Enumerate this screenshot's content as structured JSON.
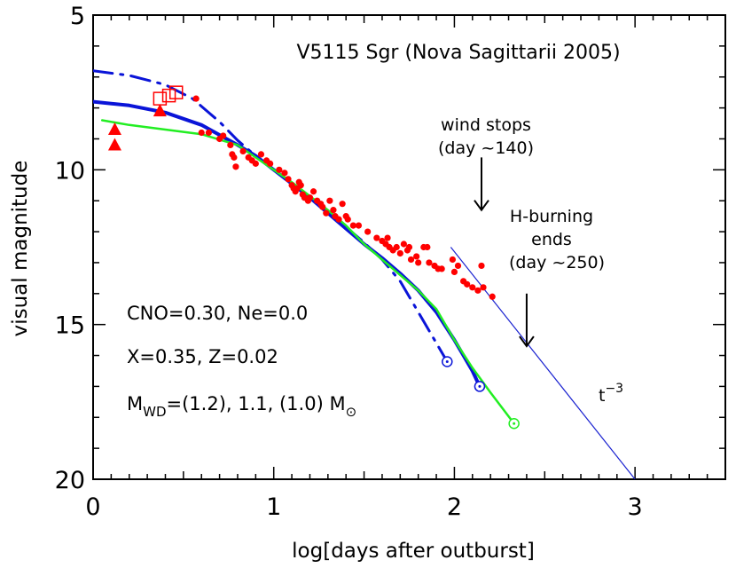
{
  "chart_data": {
    "type": "scatter",
    "title": "V5115 Sgr (Nova Sagittarii 2005)",
    "xlabel": "log[days after outburst]",
    "ylabel": "visual magnitude",
    "xlim": [
      0,
      3.5
    ],
    "ylim": [
      5,
      20
    ],
    "y_inverted": true,
    "grid": false,
    "x_ticks": [
      "0",
      "1",
      "2",
      "3"
    ],
    "y_ticks": [
      "5",
      "10",
      "15",
      "20"
    ],
    "colors": {
      "observed": "#ff0000",
      "model_main": "#0a14d8",
      "model_green": "#22ee22",
      "powerlaw": "#1a22d0",
      "axes": "#000000"
    },
    "series": [
      {
        "kind": "observed_points",
        "marker": "filled-circle",
        "color": "#ff0000",
        "points": [
          [
            0.57,
            7.7
          ],
          [
            0.6,
            8.8
          ],
          [
            0.64,
            8.8
          ],
          [
            0.7,
            9.0
          ],
          [
            0.72,
            8.9
          ],
          [
            0.76,
            9.2
          ],
          [
            0.77,
            9.5
          ],
          [
            0.78,
            9.6
          ],
          [
            0.79,
            9.9
          ],
          [
            0.83,
            9.4
          ],
          [
            0.86,
            9.6
          ],
          [
            0.88,
            9.7
          ],
          [
            0.9,
            9.8
          ],
          [
            0.93,
            9.5
          ],
          [
            0.96,
            9.7
          ],
          [
            0.98,
            9.8
          ],
          [
            1.03,
            10.0
          ],
          [
            1.06,
            10.1
          ],
          [
            1.08,
            10.3
          ],
          [
            1.1,
            10.5
          ],
          [
            1.11,
            10.6
          ],
          [
            1.12,
            10.7
          ],
          [
            1.13,
            10.6
          ],
          [
            1.14,
            10.4
          ],
          [
            1.15,
            10.5
          ],
          [
            1.16,
            10.8
          ],
          [
            1.17,
            10.9
          ],
          [
            1.19,
            11.0
          ],
          [
            1.2,
            10.9
          ],
          [
            1.22,
            10.7
          ],
          [
            1.24,
            11.0
          ],
          [
            1.26,
            11.1
          ],
          [
            1.27,
            11.2
          ],
          [
            1.29,
            11.4
          ],
          [
            1.31,
            11.0
          ],
          [
            1.33,
            11.3
          ],
          [
            1.34,
            11.5
          ],
          [
            1.36,
            11.6
          ],
          [
            1.38,
            11.1
          ],
          [
            1.4,
            11.5
          ],
          [
            1.41,
            11.6
          ],
          [
            1.44,
            11.8
          ],
          [
            1.47,
            11.8
          ],
          [
            1.52,
            12.0
          ],
          [
            1.57,
            12.2
          ],
          [
            1.6,
            12.3
          ],
          [
            1.62,
            12.4
          ],
          [
            1.63,
            12.2
          ],
          [
            1.64,
            12.5
          ],
          [
            1.66,
            12.6
          ],
          [
            1.68,
            12.5
          ],
          [
            1.7,
            12.7
          ],
          [
            1.72,
            12.4
          ],
          [
            1.74,
            12.6
          ],
          [
            1.75,
            12.5
          ],
          [
            1.76,
            12.9
          ],
          [
            1.79,
            12.8
          ],
          [
            1.8,
            13.0
          ],
          [
            1.83,
            12.5
          ],
          [
            1.85,
            12.5
          ],
          [
            1.86,
            13.0
          ],
          [
            1.89,
            13.1
          ],
          [
            1.91,
            13.2
          ],
          [
            1.93,
            13.2
          ],
          [
            1.99,
            12.9
          ],
          [
            2.0,
            13.3
          ],
          [
            2.02,
            13.1
          ],
          [
            2.05,
            13.6
          ],
          [
            2.07,
            13.7
          ],
          [
            2.1,
            13.8
          ],
          [
            2.13,
            13.9
          ],
          [
            2.15,
            13.1
          ],
          [
            2.16,
            13.8
          ],
          [
            2.21,
            14.1
          ]
        ]
      },
      {
        "kind": "observed_points",
        "marker": "filled-triangle",
        "color": "#ff0000",
        "points": [
          [
            0.12,
            8.7
          ],
          [
            0.12,
            9.2
          ],
          [
            0.37,
            8.1
          ]
        ]
      },
      {
        "kind": "observed_points",
        "marker": "open-square",
        "color": "#ff0000",
        "points": [
          [
            0.37,
            7.7
          ],
          [
            0.42,
            7.6
          ],
          [
            0.46,
            7.5
          ]
        ]
      },
      {
        "kind": "model_curve",
        "style": "solid-thick",
        "color": "#0a14d8",
        "points": [
          [
            0,
            7.8
          ],
          [
            0.2,
            7.92
          ],
          [
            0.4,
            8.15
          ],
          [
            0.6,
            8.55
          ],
          [
            0.8,
            9.2
          ],
          [
            0.9,
            9.55
          ],
          [
            1.0,
            10.0
          ],
          [
            1.1,
            10.45
          ],
          [
            1.2,
            10.9
          ],
          [
            1.3,
            11.4
          ],
          [
            1.4,
            11.9
          ],
          [
            1.5,
            12.4
          ],
          [
            1.6,
            12.85
          ],
          [
            1.7,
            13.35
          ],
          [
            1.8,
            13.9
          ],
          [
            1.9,
            14.6
          ],
          [
            2.0,
            15.5
          ],
          [
            2.05,
            16.0
          ],
          [
            2.1,
            16.5
          ],
          [
            2.14,
            17.0
          ]
        ]
      },
      {
        "kind": "model_curve",
        "style": "dash-dot",
        "color": "#0a14d8",
        "points": [
          [
            0,
            6.8
          ],
          [
            0.2,
            6.95
          ],
          [
            0.4,
            7.25
          ],
          [
            0.55,
            7.7
          ],
          [
            0.7,
            8.45
          ],
          [
            0.8,
            9.05
          ],
          [
            0.9,
            9.55
          ],
          [
            1.0,
            10.0
          ],
          [
            1.1,
            10.45
          ],
          [
            1.2,
            10.9
          ],
          [
            1.3,
            11.35
          ],
          [
            1.4,
            11.85
          ],
          [
            1.5,
            12.35
          ],
          [
            1.6,
            12.9
          ],
          [
            1.7,
            13.6
          ],
          [
            1.8,
            14.6
          ],
          [
            1.88,
            15.4
          ],
          [
            1.96,
            16.2
          ]
        ]
      },
      {
        "kind": "model_curve",
        "style": "solid",
        "color": "#22ee22",
        "points": [
          [
            0.05,
            8.4
          ],
          [
            0.2,
            8.55
          ],
          [
            0.4,
            8.7
          ],
          [
            0.6,
            8.85
          ],
          [
            0.8,
            9.2
          ],
          [
            0.9,
            9.6
          ],
          [
            1.0,
            10.0
          ],
          [
            1.1,
            10.4
          ],
          [
            1.2,
            10.85
          ],
          [
            1.3,
            11.3
          ],
          [
            1.4,
            11.8
          ],
          [
            1.5,
            12.4
          ],
          [
            1.6,
            12.9
          ],
          [
            1.7,
            13.4
          ],
          [
            1.8,
            13.9
          ],
          [
            1.9,
            14.5
          ],
          [
            2.0,
            15.5
          ],
          [
            2.1,
            16.4
          ],
          [
            2.2,
            17.2
          ],
          [
            2.33,
            18.2
          ]
        ]
      },
      {
        "kind": "powerlaw_line",
        "label": "t^-3",
        "color": "#1a22d0",
        "points": [
          [
            1.98,
            12.5
          ],
          [
            3.0,
            20.0
          ]
        ]
      }
    ],
    "end_markers": [
      {
        "x": 1.96,
        "y": 16.2,
        "color": "#0a14d8"
      },
      {
        "x": 2.14,
        "y": 17.0,
        "color": "#0a14d8"
      },
      {
        "x": 2.33,
        "y": 18.2,
        "color": "#22ee22"
      }
    ],
    "annotations": {
      "wind": {
        "line1": "wind stops",
        "line2": "(day ~140)",
        "x": 2.15,
        "y_start": 9.6,
        "y_end": 11.3
      },
      "hburn": {
        "line1": "H-burning",
        "line2": "ends",
        "line3": "(day ~250)",
        "x": 2.4,
        "y_start": 14.0,
        "y_end": 15.7
      },
      "powerlaw": {
        "base": "t",
        "exponent": "−3"
      },
      "params": {
        "line1": "CNO=0.30, Ne=0.0",
        "line2": "X=0.35, Z=0.02",
        "line3_main": "M",
        "line3_sub": "WD",
        "line3_rest": "=(1.2), 1.1, (1.0) M",
        "line3_symbol": "⊙"
      }
    }
  }
}
